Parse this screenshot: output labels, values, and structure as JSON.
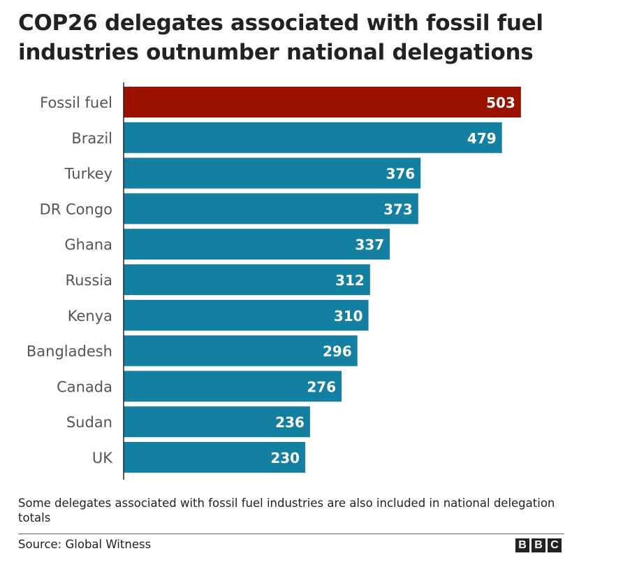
{
  "title_line1": "COP26 delegates associated with fossil fuel",
  "title_line2": "industries outnumber national delegations",
  "note": "Some delegates associated with fossil fuel industries are also included in national delegation totals",
  "source": "Source: Global Witness",
  "logo": [
    "B",
    "B",
    "C"
  ],
  "colors": {
    "highlight": "#9a1100",
    "bar": "#1380a1",
    "label": "#555555",
    "axis": "#222222"
  },
  "chart_data": {
    "type": "bar",
    "orientation": "horizontal",
    "categories": [
      "Fossil fuel",
      "Brazil",
      "Turkey",
      "DR Congo",
      "Ghana",
      "Russia",
      "Kenya",
      "Bangladesh",
      "Canada",
      "Sudan",
      "UK"
    ],
    "values": [
      503,
      479,
      376,
      373,
      337,
      312,
      310,
      296,
      276,
      236,
      230
    ],
    "highlight_category": "Fossil fuel",
    "xlim": [
      0,
      525
    ],
    "grid": false,
    "data_labels": true
  }
}
